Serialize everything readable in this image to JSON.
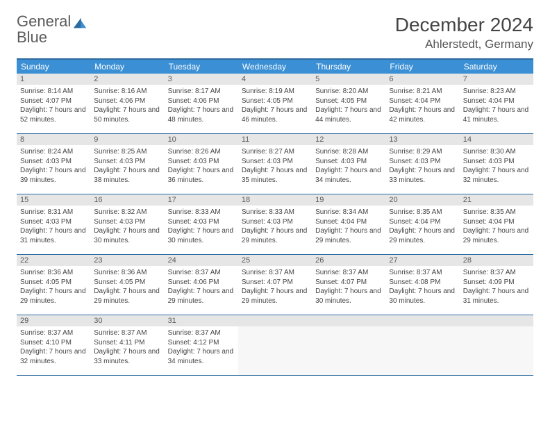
{
  "logo": {
    "text_general": "General",
    "text_blue": "Blue"
  },
  "header": {
    "title": "December 2024",
    "location": "Ahlerstedt, Germany"
  },
  "colors": {
    "header_bar": "#3b8fd4",
    "rule": "#2c6aa0",
    "daynum_bg": "#e6e6e6",
    "text": "#444444",
    "logo_gray": "#5a5a5a",
    "logo_blue": "#3b7fc4"
  },
  "typography": {
    "title_fontsize": 28,
    "location_fontsize": 17,
    "dayname_fontsize": 12,
    "body_fontsize": 10
  },
  "daynames": [
    "Sunday",
    "Monday",
    "Tuesday",
    "Wednesday",
    "Thursday",
    "Friday",
    "Saturday"
  ],
  "labels": {
    "sunrise": "Sunrise:",
    "sunset": "Sunset:",
    "daylight": "Daylight:"
  },
  "days": [
    {
      "n": 1,
      "sunrise": "8:14 AM",
      "sunset": "4:07 PM",
      "daylight": "7 hours and 52 minutes."
    },
    {
      "n": 2,
      "sunrise": "8:16 AM",
      "sunset": "4:06 PM",
      "daylight": "7 hours and 50 minutes."
    },
    {
      "n": 3,
      "sunrise": "8:17 AM",
      "sunset": "4:06 PM",
      "daylight": "7 hours and 48 minutes."
    },
    {
      "n": 4,
      "sunrise": "8:19 AM",
      "sunset": "4:05 PM",
      "daylight": "7 hours and 46 minutes."
    },
    {
      "n": 5,
      "sunrise": "8:20 AM",
      "sunset": "4:05 PM",
      "daylight": "7 hours and 44 minutes."
    },
    {
      "n": 6,
      "sunrise": "8:21 AM",
      "sunset": "4:04 PM",
      "daylight": "7 hours and 42 minutes."
    },
    {
      "n": 7,
      "sunrise": "8:23 AM",
      "sunset": "4:04 PM",
      "daylight": "7 hours and 41 minutes."
    },
    {
      "n": 8,
      "sunrise": "8:24 AM",
      "sunset": "4:03 PM",
      "daylight": "7 hours and 39 minutes."
    },
    {
      "n": 9,
      "sunrise": "8:25 AM",
      "sunset": "4:03 PM",
      "daylight": "7 hours and 38 minutes."
    },
    {
      "n": 10,
      "sunrise": "8:26 AM",
      "sunset": "4:03 PM",
      "daylight": "7 hours and 36 minutes."
    },
    {
      "n": 11,
      "sunrise": "8:27 AM",
      "sunset": "4:03 PM",
      "daylight": "7 hours and 35 minutes."
    },
    {
      "n": 12,
      "sunrise": "8:28 AM",
      "sunset": "4:03 PM",
      "daylight": "7 hours and 34 minutes."
    },
    {
      "n": 13,
      "sunrise": "8:29 AM",
      "sunset": "4:03 PM",
      "daylight": "7 hours and 33 minutes."
    },
    {
      "n": 14,
      "sunrise": "8:30 AM",
      "sunset": "4:03 PM",
      "daylight": "7 hours and 32 minutes."
    },
    {
      "n": 15,
      "sunrise": "8:31 AM",
      "sunset": "4:03 PM",
      "daylight": "7 hours and 31 minutes."
    },
    {
      "n": 16,
      "sunrise": "8:32 AM",
      "sunset": "4:03 PM",
      "daylight": "7 hours and 30 minutes."
    },
    {
      "n": 17,
      "sunrise": "8:33 AM",
      "sunset": "4:03 PM",
      "daylight": "7 hours and 30 minutes."
    },
    {
      "n": 18,
      "sunrise": "8:33 AM",
      "sunset": "4:03 PM",
      "daylight": "7 hours and 29 minutes."
    },
    {
      "n": 19,
      "sunrise": "8:34 AM",
      "sunset": "4:04 PM",
      "daylight": "7 hours and 29 minutes."
    },
    {
      "n": 20,
      "sunrise": "8:35 AM",
      "sunset": "4:04 PM",
      "daylight": "7 hours and 29 minutes."
    },
    {
      "n": 21,
      "sunrise": "8:35 AM",
      "sunset": "4:04 PM",
      "daylight": "7 hours and 29 minutes."
    },
    {
      "n": 22,
      "sunrise": "8:36 AM",
      "sunset": "4:05 PM",
      "daylight": "7 hours and 29 minutes."
    },
    {
      "n": 23,
      "sunrise": "8:36 AM",
      "sunset": "4:05 PM",
      "daylight": "7 hours and 29 minutes."
    },
    {
      "n": 24,
      "sunrise": "8:37 AM",
      "sunset": "4:06 PM",
      "daylight": "7 hours and 29 minutes."
    },
    {
      "n": 25,
      "sunrise": "8:37 AM",
      "sunset": "4:07 PM",
      "daylight": "7 hours and 29 minutes."
    },
    {
      "n": 26,
      "sunrise": "8:37 AM",
      "sunset": "4:07 PM",
      "daylight": "7 hours and 30 minutes."
    },
    {
      "n": 27,
      "sunrise": "8:37 AM",
      "sunset": "4:08 PM",
      "daylight": "7 hours and 30 minutes."
    },
    {
      "n": 28,
      "sunrise": "8:37 AM",
      "sunset": "4:09 PM",
      "daylight": "7 hours and 31 minutes."
    },
    {
      "n": 29,
      "sunrise": "8:37 AM",
      "sunset": "4:10 PM",
      "daylight": "7 hours and 32 minutes."
    },
    {
      "n": 30,
      "sunrise": "8:37 AM",
      "sunset": "4:11 PM",
      "daylight": "7 hours and 33 minutes."
    },
    {
      "n": 31,
      "sunrise": "8:37 AM",
      "sunset": "4:12 PM",
      "daylight": "7 hours and 34 minutes."
    }
  ],
  "layout": {
    "start_weekday": 0,
    "total_cells": 35,
    "columns": 7
  }
}
